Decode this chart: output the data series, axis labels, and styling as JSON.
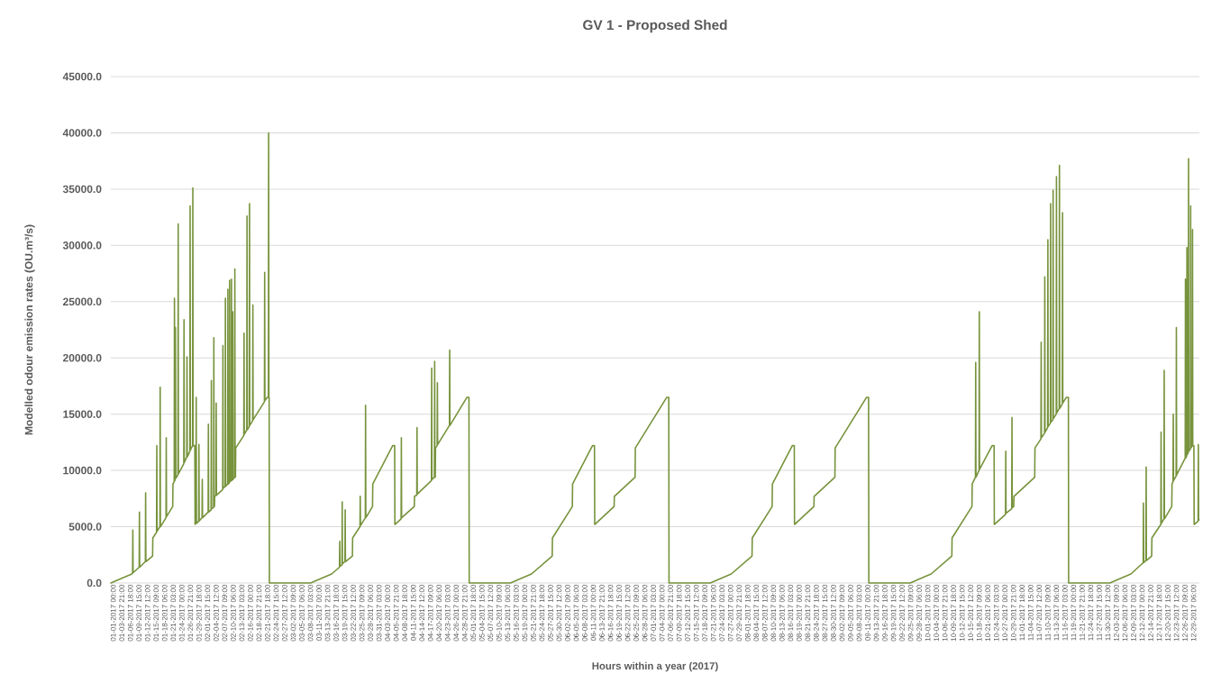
{
  "chart_data": {
    "type": "line",
    "title": "GV 1 - Proposed Shed",
    "xlabel": "Hours within a year (2017)",
    "ylabel": "Modelled odour emission rates (OU.m³/s)",
    "color": "#77933c",
    "grid": "y",
    "marker": "none",
    "line_style": "solid",
    "xlim": [
      "2017-01-01T00:00",
      "2018-01-01T00:00"
    ],
    "ylim": [
      0,
      45000
    ],
    "yticks": [
      {
        "value": 0,
        "label": "0.0"
      },
      {
        "value": 5000,
        "label": "5000.0"
      },
      {
        "value": 10000,
        "label": "10000.0"
      },
      {
        "value": 15000,
        "label": "15000.0"
      },
      {
        "value": 20000,
        "label": "20000.0"
      },
      {
        "value": 25000,
        "label": "25000.0"
      },
      {
        "value": 30000,
        "label": "30000.0"
      },
      {
        "value": 35000,
        "label": "35000.0"
      },
      {
        "value": 40000,
        "label": "40000.0"
      },
      {
        "value": 45000,
        "label": "45000.0"
      }
    ],
    "xticks": [
      {
        "value": "2017-01-01T00:00",
        "label": "01-01-2017 00:00"
      },
      {
        "value": "2017-01-03T21:00",
        "label": "01-03-2017 21:00"
      },
      {
        "value": "2017-01-06T18:00",
        "label": "01-06-2017 18:00"
      },
      {
        "value": "2017-01-09T15:00",
        "label": "01-09-2017 15:00"
      },
      {
        "value": "2017-01-12T12:00",
        "label": "01-12-2017 12:00"
      },
      {
        "value": "2017-01-15T09:00",
        "label": "01-15-2017 09:00"
      },
      {
        "value": "2017-01-18T06:00",
        "label": "01-18-2017 06:00"
      },
      {
        "value": "2017-01-21T03:00",
        "label": "01-21-2017 03:00"
      },
      {
        "value": "2017-01-24T00:00",
        "label": "01-24-2017 00:00"
      },
      {
        "value": "2017-01-26T21:00",
        "label": "01-26-2017 21:00"
      },
      {
        "value": "2017-01-29T18:00",
        "label": "01-29-2017 18:00"
      },
      {
        "value": "2017-02-01T15:00",
        "label": "02-01-2017 15:00"
      },
      {
        "value": "2017-02-04T12:00",
        "label": "02-04-2017 12:00"
      },
      {
        "value": "2017-02-07T09:00",
        "label": "02-07-2017 09:00"
      },
      {
        "value": "2017-02-10T06:00",
        "label": "02-10-2017 06:00"
      },
      {
        "value": "2017-02-13T03:00",
        "label": "02-13-2017 03:00"
      },
      {
        "value": "2017-02-16T00:00",
        "label": "02-16-2017 00:00"
      },
      {
        "value": "2017-02-18T21:00",
        "label": "02-18-2017 21:00"
      },
      {
        "value": "2017-02-21T18:00",
        "label": "02-21-2017 18:00"
      },
      {
        "value": "2017-02-24T15:00",
        "label": "02-24-2017 15:00"
      },
      {
        "value": "2017-02-27T12:00",
        "label": "02-27-2017 12:00"
      },
      {
        "value": "2017-03-02T09:00",
        "label": "03-02-2017 09:00"
      },
      {
        "value": "2017-03-05T06:00",
        "label": "03-05-2017 06:00"
      },
      {
        "value": "2017-03-08T03:00",
        "label": "03-08-2017 03:00"
      },
      {
        "value": "2017-03-11T00:00",
        "label": "03-11-2017 00:00"
      },
      {
        "value": "2017-03-13T21:00",
        "label": "03-13-2017 21:00"
      },
      {
        "value": "2017-03-16T18:00",
        "label": "03-16-2017 18:00"
      },
      {
        "value": "2017-03-19T15:00",
        "label": "03-19-2017 15:00"
      },
      {
        "value": "2017-03-22T12:00",
        "label": "03-22-2017 12:00"
      },
      {
        "value": "2017-03-25T09:00",
        "label": "03-25-2017 09:00"
      },
      {
        "value": "2017-03-28T06:00",
        "label": "03-28-2017 06:00"
      },
      {
        "value": "2017-03-31T03:00",
        "label": "03-31-2017 03:00"
      },
      {
        "value": "2017-04-03T00:00",
        "label": "04-03-2017 00:00"
      },
      {
        "value": "2017-04-05T21:00",
        "label": "04-05-2017 21:00"
      },
      {
        "value": "2017-04-08T18:00",
        "label": "04-08-2017 18:00"
      },
      {
        "value": "2017-04-11T15:00",
        "label": "04-11-2017 15:00"
      },
      {
        "value": "2017-04-14T12:00",
        "label": "04-14-2017 12:00"
      },
      {
        "value": "2017-04-17T09:00",
        "label": "04-17-2017 09:00"
      },
      {
        "value": "2017-04-20T06:00",
        "label": "04-20-2017 06:00"
      },
      {
        "value": "2017-04-23T03:00",
        "label": "04-23-2017 03:00"
      },
      {
        "value": "2017-04-26T00:00",
        "label": "04-26-2017 00:00"
      },
      {
        "value": "2017-04-28T21:00",
        "label": "04-28-2017 21:00"
      },
      {
        "value": "2017-05-01T18:00",
        "label": "05-01-2017 18:00"
      },
      {
        "value": "2017-05-04T15:00",
        "label": "05-04-2017 15:00"
      },
      {
        "value": "2017-05-07T12:00",
        "label": "05-07-2017 12:00"
      },
      {
        "value": "2017-05-10T09:00",
        "label": "05-10-2017 09:00"
      },
      {
        "value": "2017-05-13T06:00",
        "label": "05-13-2017 06:00"
      },
      {
        "value": "2017-05-16T03:00",
        "label": "05-16-2017 03:00"
      },
      {
        "value": "2017-05-19T00:00",
        "label": "05-19-2017 00:00"
      },
      {
        "value": "2017-05-21T21:00",
        "label": "05-21-2017 21:00"
      },
      {
        "value": "2017-05-24T18:00",
        "label": "05-24-2017 18:00"
      },
      {
        "value": "2017-05-27T15:00",
        "label": "05-27-2017 15:00"
      },
      {
        "value": "2017-05-30T12:00",
        "label": "05-30-2017 12:00"
      },
      {
        "value": "2017-06-02T09:00",
        "label": "06-02-2017 09:00"
      },
      {
        "value": "2017-06-05T06:00",
        "label": "06-05-2017 06:00"
      },
      {
        "value": "2017-06-08T03:00",
        "label": "06-08-2017 03:00"
      },
      {
        "value": "2017-06-11T00:00",
        "label": "06-11-2017 00:00"
      },
      {
        "value": "2017-06-13T21:00",
        "label": "06-13-2017 21:00"
      },
      {
        "value": "2017-06-16T18:00",
        "label": "06-16-2017 18:00"
      },
      {
        "value": "2017-06-19T15:00",
        "label": "06-19-2017 15:00"
      },
      {
        "value": "2017-06-22T12:00",
        "label": "06-22-2017 12:00"
      },
      {
        "value": "2017-06-25T09:00",
        "label": "06-25-2017 09:00"
      },
      {
        "value": "2017-06-28T06:00",
        "label": "06-28-2017 06:00"
      },
      {
        "value": "2017-07-01T03:00",
        "label": "07-01-2017 03:00"
      },
      {
        "value": "2017-07-04T00:00",
        "label": "07-04-2017 00:00"
      },
      {
        "value": "2017-07-06T21:00",
        "label": "07-06-2017 21:00"
      },
      {
        "value": "2017-07-09T18:00",
        "label": "07-09-2017 18:00"
      },
      {
        "value": "2017-07-12T15:00",
        "label": "07-12-2017 15:00"
      },
      {
        "value": "2017-07-15T12:00",
        "label": "07-15-2017 12:00"
      },
      {
        "value": "2017-07-18T09:00",
        "label": "07-18-2017 09:00"
      },
      {
        "value": "2017-07-21T06:00",
        "label": "07-21-2017 06:00"
      },
      {
        "value": "2017-07-24T03:00",
        "label": "07-24-2017 03:00"
      },
      {
        "value": "2017-07-27T00:00",
        "label": "07-27-2017 00:00"
      },
      {
        "value": "2017-07-29T21:00",
        "label": "07-29-2017 21:00"
      },
      {
        "value": "2017-08-01T18:00",
        "label": "08-01-2017 18:00"
      },
      {
        "value": "2017-08-04T15:00",
        "label": "08-04-2017 15:00"
      },
      {
        "value": "2017-08-07T12:00",
        "label": "08-07-2017 12:00"
      },
      {
        "value": "2017-08-10T09:00",
        "label": "08-10-2017 09:00"
      },
      {
        "value": "2017-08-13T06:00",
        "label": "08-13-2017 06:00"
      },
      {
        "value": "2017-08-16T03:00",
        "label": "08-16-2017 03:00"
      },
      {
        "value": "2017-08-19T00:00",
        "label": "08-19-2017 00:00"
      },
      {
        "value": "2017-08-21T21:00",
        "label": "08-21-2017 21:00"
      },
      {
        "value": "2017-08-24T18:00",
        "label": "08-24-2017 18:00"
      },
      {
        "value": "2017-08-27T15:00",
        "label": "08-27-2017 15:00"
      },
      {
        "value": "2017-08-30T12:00",
        "label": "08-30-2017 12:00"
      },
      {
        "value": "2017-09-02T09:00",
        "label": "09-02-2017 09:00"
      },
      {
        "value": "2017-09-05T06:00",
        "label": "09-05-2017 06:00"
      },
      {
        "value": "2017-09-08T03:00",
        "label": "09-08-2017 03:00"
      },
      {
        "value": "2017-09-11T00:00",
        "label": "09-11-2017 00:00"
      },
      {
        "value": "2017-09-13T21:00",
        "label": "09-13-2017 21:00"
      },
      {
        "value": "2017-09-16T18:00",
        "label": "09-16-2017 18:00"
      },
      {
        "value": "2017-09-19T15:00",
        "label": "09-19-2017 15:00"
      },
      {
        "value": "2017-09-22T12:00",
        "label": "09-22-2017 12:00"
      },
      {
        "value": "2017-09-25T09:00",
        "label": "09-25-2017 09:00"
      },
      {
        "value": "2017-09-28T06:00",
        "label": "09-28-2017 06:00"
      },
      {
        "value": "2017-10-01T03:00",
        "label": "10-01-2017 03:00"
      },
      {
        "value": "2017-10-04T00:00",
        "label": "10-04-2017 00:00"
      },
      {
        "value": "2017-10-06T21:00",
        "label": "10-06-2017 21:00"
      },
      {
        "value": "2017-10-09T18:00",
        "label": "10-09-2017 18:00"
      },
      {
        "value": "2017-10-12T15:00",
        "label": "10-12-2017 15:00"
      },
      {
        "value": "2017-10-15T12:00",
        "label": "10-15-2017 12:00"
      },
      {
        "value": "2017-10-18T09:00",
        "label": "10-18-2017 09:00"
      },
      {
        "value": "2017-10-21T06:00",
        "label": "10-21-2017 06:00"
      },
      {
        "value": "2017-10-24T03:00",
        "label": "10-24-2017 03:00"
      },
      {
        "value": "2017-10-27T00:00",
        "label": "10-27-2017 00:00"
      },
      {
        "value": "2017-10-29T21:00",
        "label": "10-29-2017 21:00"
      },
      {
        "value": "2017-11-01T18:00",
        "label": "11-01-2017 18:00"
      },
      {
        "value": "2017-11-04T15:00",
        "label": "11-04-2017 15:00"
      },
      {
        "value": "2017-11-07T12:00",
        "label": "11-07-2017 12:00"
      },
      {
        "value": "2017-11-10T09:00",
        "label": "11-10-2017 09:00"
      },
      {
        "value": "2017-11-13T06:00",
        "label": "11-13-2017 06:00"
      },
      {
        "value": "2017-11-16T03:00",
        "label": "11-16-2017 03:00"
      },
      {
        "value": "2017-11-19T00:00",
        "label": "11-19-2017 00:00"
      },
      {
        "value": "2017-11-21T21:00",
        "label": "11-21-2017 21:00"
      },
      {
        "value": "2017-11-24T18:00",
        "label": "11-24-2017 18:00"
      },
      {
        "value": "2017-11-27T15:00",
        "label": "11-27-2017 15:00"
      },
      {
        "value": "2017-11-30T12:00",
        "label": "11-30-2017 12:00"
      },
      {
        "value": "2017-12-03T09:00",
        "label": "12-03-2017 09:00"
      },
      {
        "value": "2017-12-06T06:00",
        "label": "12-06-2017 06:00"
      },
      {
        "value": "2017-12-09T03:00",
        "label": "12-09-2017 03:00"
      },
      {
        "value": "2017-12-12T00:00",
        "label": "12-12-2017 00:00"
      },
      {
        "value": "2017-12-14T21:00",
        "label": "12-14-2017 21:00"
      },
      {
        "value": "2017-12-17T18:00",
        "label": "12-17-2017 18:00"
      },
      {
        "value": "2017-12-20T15:00",
        "label": "12-20-2017 15:00"
      },
      {
        "value": "2017-12-23T12:00",
        "label": "12-23-2017 12:00"
      },
      {
        "value": "2017-12-26T09:00",
        "label": "12-26-2017 09:00"
      },
      {
        "value": "2017-12-29T06:00",
        "label": "12-29-2017 06:00"
      }
    ],
    "x": [
      "2017-01-01T00:00",
      "2017-01-08T01:00",
      "2017-01-08T07:00",
      "2017-01-08T09:00",
      "2017-01-08T11:00",
      "2017-01-10T12:00",
      "2017-01-10T14:00",
      "2017-01-10T16:00",
      "2017-01-12T14:00",
      "2017-01-12T16:00",
      "2017-01-12T18:00",
      "2017-01-15T00:00",
      "2017-01-15T02:00",
      "2017-01-16T08:00",
      "2017-01-16T10:00",
      "2017-01-16T12:00",
      "2017-01-17T11:00",
      "2017-01-17T13:00",
      "2017-01-17T15:00",
      "2017-01-19T12:00",
      "2017-01-19T14:00",
      "2017-01-19T16:00",
      "2017-01-21T18:00",
      "2017-01-21T20:00",
      "2017-01-22T06:00",
      "2017-01-22T08:00",
      "2017-01-22T12:00",
      "2017-01-22T16:00",
      "2017-01-22T19:00",
      "2017-01-23T12:00",
      "2017-01-23T14:00",
      "2017-01-23T16:00",
      "2017-01-25T11:00",
      "2017-01-25T13:00",
      "2017-01-25T15:00",
      "2017-01-26T11:00",
      "2017-01-26T13:00",
      "2017-01-26T15:00",
      "2017-01-27T12:00",
      "2017-01-27T14:00",
      "2017-01-27T16:00",
      "2017-01-28T10:00",
      "2017-01-28T12:00",
      "2017-01-28T14:00",
      "2017-01-29T04:00",
      "2017-01-29T06:00",
      "2017-01-29T13:00",
      "2017-01-29T15:00",
      "2017-01-29T17:00",
      "2017-01-30T11:00",
      "2017-01-30T13:00",
      "2017-01-30T15:00",
      "2017-01-31T14:00",
      "2017-01-31T16:00",
      "2017-01-31T18:00",
      "2017-02-02T15:00",
      "2017-02-02T17:00",
      "2017-02-02T19:00",
      "2017-02-03T15:00",
      "2017-02-03T17:00",
      "2017-02-03T19:00",
      "2017-02-04T11:00",
      "2017-02-04T13:00",
      "2017-02-04T15:00",
      "2017-02-04T18:00",
      "2017-02-04T20:00",
      "2017-02-05T06:00",
      "2017-02-05T08:00",
      "2017-02-05T10:00",
      "2017-02-07T12:00",
      "2017-02-07T14:00",
      "2017-02-07T16:00",
      "2017-02-08T08:00",
      "2017-02-08T10:00",
      "2017-02-08T12:00",
      "2017-02-09T04:00",
      "2017-02-09T06:00",
      "2017-02-09T08:00",
      "2017-02-09T18:00",
      "2017-02-09T20:00",
      "2017-02-09T22:00",
      "2017-02-10T09:00",
      "2017-02-10T11:00",
      "2017-02-10T13:00",
      "2017-02-10T19:00",
      "2017-02-10T21:00",
      "2017-02-10T23:00",
      "2017-02-11T12:00",
      "2017-02-11T14:00",
      "2017-02-11T16:00",
      "2017-02-11T19:00",
      "2017-02-11T21:00",
      "2017-02-14T14:00",
      "2017-02-14T16:00",
      "2017-02-14T18:00",
      "2017-02-15T14:00",
      "2017-02-15T16:00",
      "2017-02-15T18:00",
      "2017-02-16T10:00",
      "2017-02-16T12:00",
      "2017-02-16T14:00",
      "2017-02-17T13:00",
      "2017-02-17T15:00",
      "2017-02-17T17:00",
      "2017-02-21T12:00",
      "2017-02-21T14:00",
      "2017-02-21T16:00",
      "2017-02-22T10:00",
      "2017-02-22T20:00",
      "2017-02-22T22:00",
      "2017-02-23T00:00",
      "2017-02-23T02:00",
      "2017-02-23T04:00",
      "2017-03-09T00:00",
      "2017-03-16T01:00",
      "2017-03-18T16:00",
      "2017-03-18T18:00",
      "2017-03-18T20:00",
      "2017-03-19T12:00",
      "2017-03-19T14:00",
      "2017-03-19T16:00",
      "2017-03-20T12:00",
      "2017-03-20T14:00",
      "2017-03-20T16:00",
      "2017-03-23T00:00",
      "2017-03-23T02:00",
      "2017-03-25T13:00",
      "2017-03-25T15:00",
      "2017-03-25T17:00",
      "2017-03-27T08:00",
      "2017-03-27T10:00",
      "2017-03-27T12:00",
      "2017-03-29T18:00",
      "2017-03-29T20:00",
      "2017-04-05T12:00",
      "2017-04-06T04:00",
      "2017-04-06T06:00",
      "2017-04-08T08:00",
      "2017-04-08T10:00",
      "2017-04-08T12:00",
      "2017-04-12T18:00",
      "2017-04-12T20:00",
      "2017-04-13T14:00",
      "2017-04-13T16:00",
      "2017-04-13T18:00",
      "2017-04-18T12:00",
      "2017-04-18T14:00",
      "2017-04-18T16:00",
      "2017-04-19T12:00",
      "2017-04-19T14:00",
      "2017-04-19T16:00",
      "2017-04-19T19:00",
      "2017-04-19T21:00",
      "2017-04-20T10:00",
      "2017-04-20T12:00",
      "2017-04-20T14:00",
      "2017-04-24T13:00",
      "2017-04-24T15:00",
      "2017-04-24T17:00",
      "2017-04-30T10:00",
      "2017-05-01T02:00",
      "2017-05-01T04:00",
      "2017-05-15T00:00",
      "2017-05-22T01:00",
      "2017-05-29T00:00",
      "2017-05-29T02:00",
      "2017-06-04T18:00",
      "2017-06-04T20:00",
      "2017-06-11T12:00",
      "2017-06-12T04:00",
      "2017-06-12T06:00",
      "2017-06-18T18:00",
      "2017-06-18T20:00",
      "2017-06-25T19:00",
      "2017-06-25T21:00",
      "2017-07-06T10:00",
      "2017-07-07T02:00",
      "2017-07-07T04:00",
      "2017-07-21T00:00",
      "2017-07-28T01:00",
      "2017-08-04T00:00",
      "2017-08-04T02:00",
      "2017-08-10T18:00",
      "2017-08-10T20:00",
      "2017-08-17T12:00",
      "2017-08-18T04:00",
      "2017-08-18T06:00",
      "2017-08-24T18:00",
      "2017-08-24T20:00",
      "2017-08-31T19:00",
      "2017-08-31T21:00",
      "2017-09-11T10:00",
      "2017-09-12T02:00",
      "2017-09-12T04:00",
      "2017-09-26T00:00",
      "2017-10-03T01:00",
      "2017-10-10T00:00",
      "2017-10-10T02:00",
      "2017-10-16T18:00",
      "2017-10-16T20:00",
      "2017-10-17T22:00",
      "2017-10-18T00:00",
      "2017-10-18T02:00",
      "2017-10-19T03:00",
      "2017-10-19T05:00",
      "2017-10-19T07:00",
      "2017-10-23T12:00",
      "2017-10-24T04:00",
      "2017-10-24T06:00",
      "2017-10-28T00:00",
      "2017-10-28T02:00",
      "2017-10-28T04:00",
      "2017-10-30T02:00",
      "2017-10-30T04:00",
      "2017-10-30T06:00",
      "2017-10-30T18:00",
      "2017-10-30T20:00",
      "2017-11-06T19:00",
      "2017-11-06T21:00",
      "2017-11-08T21:00",
      "2017-11-08T23:00",
      "2017-11-09T01:00",
      "2017-11-10T02:00",
      "2017-11-10T04:00",
      "2017-11-10T06:00",
      "2017-11-11T03:00",
      "2017-11-11T05:00",
      "2017-11-11T07:00",
      "2017-11-12T01:00",
      "2017-11-12T03:00",
      "2017-11-12T05:00",
      "2017-11-12T21:00",
      "2017-11-12T23:00",
      "2017-11-13T01:00",
      "2017-11-14T00:00",
      "2017-11-14T02:00",
      "2017-11-14T04:00",
      "2017-11-15T00:00",
      "2017-11-15T02:00",
      "2017-11-15T04:00",
      "2017-11-16T01:00",
      "2017-11-16T03:00",
      "2017-11-16T05:00",
      "2017-11-17T10:00",
      "2017-11-18T02:00",
      "2017-11-18T04:00",
      "2017-12-02T00:00",
      "2017-12-09T01:00",
      "2017-12-13T04:00",
      "2017-12-13T06:00",
      "2017-12-13T08:00",
      "2017-12-14T02:00",
      "2017-12-14T04:00",
      "2017-12-14T06:00",
      "2017-12-16T00:00",
      "2017-12-16T02:00",
      "2017-12-19T02:00",
      "2017-12-19T04:00",
      "2017-12-19T06:00",
      "2017-12-20T03:00",
      "2017-12-20T05:00",
      "2017-12-20T07:00",
      "2017-12-22T18:00",
      "2017-12-22T20:00",
      "2017-12-23T04:00",
      "2017-12-23T06:00",
      "2017-12-23T08:00",
      "2017-12-24T05:00",
      "2017-12-24T07:00",
      "2017-12-24T09:00",
      "2017-12-27T06:00",
      "2017-12-27T08:00",
      "2017-12-27T10:00",
      "2017-12-27T18:00",
      "2017-12-27T20:00",
      "2017-12-27T22:00",
      "2017-12-28T07:00",
      "2017-12-28T09:00",
      "2017-12-28T11:00",
      "2017-12-29T00:00",
      "2017-12-29T02:00",
      "2017-12-29T04:00",
      "2017-12-29T15:00",
      "2017-12-29T17:00",
      "2017-12-29T19:00",
      "2017-12-30T04:00",
      "2017-12-30T06:00",
      "2017-12-31T14:00",
      "2017-12-31T16:00",
      "2017-12-31T18:00",
      "2017-12-31T23:00"
    ],
    "values": [
      0,
      800,
      900,
      4700,
      900,
      1400,
      6300,
      1400,
      1900,
      8000,
      1900,
      2400,
      4000,
      4500,
      12200,
      4600,
      5000,
      17400,
      5000,
      5800,
      12900,
      5900,
      6800,
      8800,
      9000,
      25300,
      9100,
      22700,
      9300,
      9600,
      31900,
      9700,
      10600,
      23400,
      10700,
      11200,
      20100,
      11200,
      11700,
      33500,
      11800,
      12200,
      35100,
      12200,
      12200,
      5200,
      5300,
      16500,
      5300,
      5500,
      12300,
      5500,
      5800,
      9200,
      5800,
      6300,
      14100,
      6300,
      6500,
      18000,
      6600,
      6700,
      21800,
      6800,
      6800,
      7700,
      7800,
      16000,
      7800,
      8300,
      21100,
      8400,
      8600,
      25300,
      8600,
      8800,
      26100,
      8800,
      8900,
      26900,
      9000,
      9100,
      27000,
      9100,
      9200,
      24100,
      9200,
      9400,
      27900,
      9400,
      9400,
      12000,
      13100,
      22200,
      13200,
      13600,
      32600,
      13600,
      13900,
      33700,
      14000,
      14400,
      24700,
      14500,
      16100,
      27600,
      16200,
      16500,
      16500,
      40000,
      16500,
      16500,
      0,
      0,
      800,
      1400,
      3700,
      1500,
      1600,
      7200,
      1700,
      1900,
      6500,
      1900,
      2400,
      4000,
      5000,
      7700,
      5100,
      5800,
      15800,
      5800,
      6800,
      8800,
      12200,
      12200,
      5200,
      5700,
      12900,
      5800,
      6800,
      7700,
      7800,
      13800,
      7900,
      9100,
      19100,
      9200,
      9400,
      19700,
      9400,
      9400,
      12000,
      12200,
      17800,
      12300,
      14000,
      20700,
      14000,
      16500,
      16500,
      0,
      0,
      800,
      2400,
      4000,
      6800,
      8800,
      12200,
      12200,
      5200,
      6800,
      7700,
      9400,
      12000,
      16500,
      16500,
      0,
      0,
      800,
      2400,
      4000,
      6800,
      8800,
      12200,
      12200,
      5200,
      6800,
      7700,
      9400,
      12000,
      16500,
      16500,
      0,
      0,
      800,
      2400,
      4000,
      6800,
      8800,
      9400,
      19600,
      9400,
      10000,
      24100,
      10100,
      12200,
      12200,
      5200,
      6100,
      11700,
      6200,
      6600,
      14700,
      6700,
      6800,
      7700,
      9400,
      12000,
      12800,
      21400,
      12900,
      13300,
      27200,
      13400,
      13800,
      30500,
      13900,
      14200,
      33700,
      14300,
      14500,
      34900,
      14600,
      15000,
      36100,
      15100,
      15500,
      37100,
      15500,
      15900,
      32900,
      16000,
      16500,
      16500,
      0,
      0,
      800,
      1800,
      7100,
      1800,
      2000,
      10300,
      2000,
      2400,
      4000,
      5200,
      13400,
      5300,
      5700,
      18900,
      5700,
      6800,
      8800,
      9000,
      15000,
      9100,
      9500,
      22700,
      9600,
      11100,
      27000,
      11100,
      11300,
      29800,
      11400,
      11600,
      37700,
      11700,
      11900,
      33500,
      12000,
      12200,
      31400,
      12200,
      12200,
      5200,
      5500,
      12300,
      5600,
      5600
    ]
  }
}
